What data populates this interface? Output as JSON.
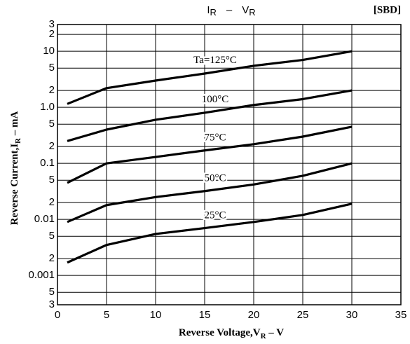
{
  "chart_data": {
    "type": "line",
    "title_parts": [
      "I",
      "R",
      "–",
      "V",
      "R"
    ],
    "tag": "[SBD]",
    "xlabel_parts": [
      "Reverse Voltage,V",
      "R",
      " – V"
    ],
    "ylabel_parts": [
      "Reverse Current,I",
      "R",
      " – mA"
    ],
    "log_y": true,
    "grid": true,
    "color": "#000000",
    "xlim": [
      0,
      35
    ],
    "xticks": [
      0,
      5,
      10,
      15,
      20,
      25,
      30,
      35
    ],
    "ylim": [
      0.0003,
      30
    ],
    "yticks": [
      {
        "value": 30,
        "label": "3"
      },
      {
        "value": 20,
        "label": "2"
      },
      10,
      {
        "value": 5,
        "label": "5"
      },
      {
        "value": 2,
        "label": "2"
      },
      {
        "value": 1,
        "label": "1.0"
      },
      {
        "value": 0.5,
        "label": "5"
      },
      {
        "value": 0.2,
        "label": "2"
      },
      0.1,
      {
        "value": 0.05,
        "label": "5"
      },
      {
        "value": 0.02,
        "label": "2"
      },
      0.01,
      {
        "value": 0.005,
        "label": "5"
      },
      {
        "value": 0.002,
        "label": "2"
      },
      0.001,
      {
        "value": 0.0005,
        "label": "5"
      },
      {
        "value": 0.0003,
        "label": "3"
      }
    ],
    "x": [
      1,
      5,
      10,
      15,
      20,
      25,
      30
    ],
    "series": [
      {
        "name": "Ta=125°C",
        "values": [
          1.15,
          2.2,
          3,
          4,
          5.5,
          7,
          10
        ]
      },
      {
        "name": "100°C",
        "values": [
          0.25,
          0.4,
          0.6,
          0.8,
          1.1,
          1.4,
          2.0
        ]
      },
      {
        "name": "75°C",
        "values": [
          0.045,
          0.1,
          0.13,
          0.17,
          0.22,
          0.3,
          0.45
        ]
      },
      {
        "name": "50°C",
        "values": [
          0.009,
          0.018,
          0.025,
          0.032,
          0.042,
          0.06,
          0.1
        ]
      },
      {
        "name": "25°C",
        "values": [
          0.0017,
          0.0035,
          0.0055,
          0.007,
          0.009,
          0.012,
          0.019
        ]
      }
    ]
  }
}
